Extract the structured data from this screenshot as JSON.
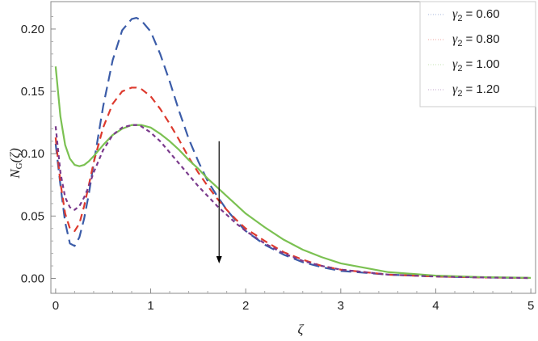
{
  "chart_data": {
    "type": "line",
    "xlabel": "ζ",
    "ylabel": "N_G(ζ)",
    "ylabel_main": "N",
    "ylabel_sub": "G",
    "ylabel_tail": "(ζ)",
    "xlim": [
      -0.05,
      5.05
    ],
    "ylim": [
      -0.012,
      0.222
    ],
    "x_ticks": [
      0,
      1,
      2,
      3,
      4,
      5
    ],
    "x_tick_labels": [
      "0",
      "1",
      "2",
      "3",
      "4",
      "5"
    ],
    "y_ticks": [
      0.0,
      0.05,
      0.1,
      0.15,
      0.2
    ],
    "y_tick_labels": [
      "0.00",
      "0.05",
      "0.10",
      "0.15",
      "0.20"
    ],
    "grid": false,
    "legend_position": "top-right",
    "annotation": "downward arrow at ζ ≈ 1.72 from 0.11 to 0.01, indicating decrease with increasing γ2",
    "series": [
      {
        "name": "γ2 = 0.60",
        "legend_symbol": "γ",
        "legend_sub": "2",
        "legend_value": "= 0.60",
        "color": "#3b5ca8",
        "dash": "long-dash",
        "x": [
          0.0,
          0.05,
          0.1,
          0.15,
          0.2,
          0.25,
          0.3,
          0.35,
          0.4,
          0.5,
          0.6,
          0.7,
          0.8,
          0.85,
          0.9,
          1.0,
          1.1,
          1.2,
          1.3,
          1.4,
          1.5,
          1.6,
          1.7,
          1.8,
          1.9,
          2.0,
          2.2,
          2.4,
          2.6,
          2.8,
          3.0,
          3.5,
          4.0,
          4.5,
          5.0
        ],
        "y": [
          0.108,
          0.075,
          0.045,
          0.028,
          0.026,
          0.033,
          0.048,
          0.068,
          0.092,
          0.138,
          0.175,
          0.199,
          0.208,
          0.209,
          0.207,
          0.198,
          0.18,
          0.158,
          0.134,
          0.112,
          0.094,
          0.078,
          0.066,
          0.055,
          0.046,
          0.038,
          0.027,
          0.019,
          0.013,
          0.009,
          0.006,
          0.003,
          0.0015,
          0.0007,
          0.0003
        ]
      },
      {
        "name": "γ2 = 0.80",
        "legend_symbol": "γ",
        "legend_sub": "2",
        "legend_value": "= 0.80",
        "color": "#dd3a2e",
        "dash": "medium-dash",
        "x": [
          0.0,
          0.05,
          0.1,
          0.15,
          0.2,
          0.25,
          0.3,
          0.35,
          0.4,
          0.5,
          0.6,
          0.7,
          0.8,
          0.85,
          0.9,
          1.0,
          1.1,
          1.2,
          1.3,
          1.4,
          1.5,
          1.6,
          1.7,
          1.8,
          1.9,
          2.0,
          2.2,
          2.4,
          2.6,
          2.8,
          3.0,
          3.5,
          4.0,
          4.5,
          5.0
        ],
        "y": [
          0.113,
          0.077,
          0.052,
          0.04,
          0.038,
          0.044,
          0.058,
          0.075,
          0.093,
          0.121,
          0.14,
          0.15,
          0.153,
          0.153,
          0.152,
          0.146,
          0.136,
          0.124,
          0.111,
          0.097,
          0.085,
          0.074,
          0.064,
          0.055,
          0.047,
          0.04,
          0.03,
          0.021,
          0.015,
          0.01,
          0.007,
          0.003,
          0.0015,
          0.0007,
          0.0003
        ]
      },
      {
        "name": "γ2 = 1.00",
        "legend_symbol": "γ",
        "legend_sub": "2",
        "legend_value": "= 1.00",
        "color": "#7bc152",
        "dash": "solid",
        "x": [
          0.0,
          0.05,
          0.1,
          0.15,
          0.2,
          0.25,
          0.3,
          0.35,
          0.4,
          0.5,
          0.6,
          0.7,
          0.8,
          0.9,
          1.0,
          1.1,
          1.2,
          1.3,
          1.4,
          1.5,
          1.6,
          1.7,
          1.8,
          1.9,
          2.0,
          2.2,
          2.4,
          2.6,
          2.8,
          3.0,
          3.5,
          4.0,
          4.5,
          5.0
        ],
        "y": [
          0.17,
          0.13,
          0.107,
          0.096,
          0.091,
          0.09,
          0.091,
          0.094,
          0.098,
          0.107,
          0.115,
          0.12,
          0.123,
          0.123,
          0.121,
          0.116,
          0.11,
          0.103,
          0.095,
          0.088,
          0.08,
          0.073,
          0.066,
          0.059,
          0.052,
          0.041,
          0.031,
          0.023,
          0.017,
          0.012,
          0.005,
          0.0022,
          0.001,
          0.0004
        ]
      },
      {
        "name": "γ2 = 1.20",
        "legend_symbol": "γ",
        "legend_sub": "2",
        "legend_value": "= 1.20",
        "color": "#7a3a8c",
        "dash": "short-dash",
        "x": [
          0.0,
          0.05,
          0.1,
          0.15,
          0.2,
          0.25,
          0.3,
          0.35,
          0.4,
          0.5,
          0.6,
          0.7,
          0.8,
          0.85,
          0.9,
          1.0,
          1.1,
          1.2,
          1.3,
          1.4,
          1.5,
          1.6,
          1.7,
          1.8,
          1.9,
          2.0,
          2.2,
          2.4,
          2.6,
          2.8,
          3.0,
          3.5,
          4.0,
          4.5,
          5.0
        ],
        "y": [
          0.122,
          0.085,
          0.065,
          0.057,
          0.055,
          0.058,
          0.065,
          0.074,
          0.085,
          0.103,
          0.115,
          0.121,
          0.123,
          0.123,
          0.122,
          0.117,
          0.11,
          0.101,
          0.092,
          0.083,
          0.074,
          0.066,
          0.058,
          0.051,
          0.044,
          0.038,
          0.028,
          0.02,
          0.014,
          0.01,
          0.007,
          0.003,
          0.0015,
          0.0007,
          0.0003
        ]
      }
    ]
  }
}
